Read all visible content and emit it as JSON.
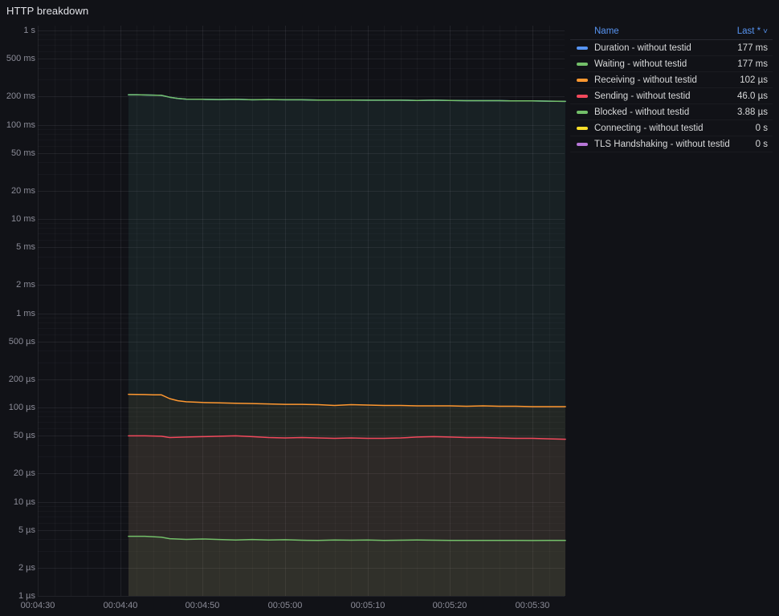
{
  "title": "HTTP breakdown",
  "legend": {
    "name_header": "Name",
    "value_header": "Last *",
    "sort_caret": "˅",
    "rows": [
      {
        "name": "Duration - without testid",
        "value": "177 ms",
        "color": "#5794F2"
      },
      {
        "name": "Waiting - without testid",
        "value": "177 ms",
        "color": "#73BF69"
      },
      {
        "name": "Receiving - without testid",
        "value": "102 µs",
        "color": "#FF9830"
      },
      {
        "name": "Sending - without testid",
        "value": "46.0 µs",
        "color": "#F2495C"
      },
      {
        "name": "Blocked - without testid",
        "value": "3.88 µs",
        "color": "#73BF69"
      },
      {
        "name": "Connecting - without testid",
        "value": "0 s",
        "color": "#FADE2A"
      },
      {
        "name": "TLS Handshaking - without testid",
        "value": "0 s",
        "color": "#B877D9"
      }
    ]
  },
  "chart_data": {
    "type": "line",
    "title": "HTTP breakdown",
    "y_axis": {
      "scale": "log10",
      "unit": "seconds",
      "range": [
        1e-06,
        1
      ],
      "ticks": [
        {
          "v": 1,
          "label": "1 s"
        },
        {
          "v": 0.5,
          "label": "500 ms"
        },
        {
          "v": 0.2,
          "label": "200 ms"
        },
        {
          "v": 0.1,
          "label": "100 ms"
        },
        {
          "v": 0.05,
          "label": "50 ms"
        },
        {
          "v": 0.02,
          "label": "20 ms"
        },
        {
          "v": 0.01,
          "label": "10 ms"
        },
        {
          "v": 0.005,
          "label": "5 ms"
        },
        {
          "v": 0.002,
          "label": "2 ms"
        },
        {
          "v": 0.001,
          "label": "1 ms"
        },
        {
          "v": 0.0005,
          "label": "500 µs"
        },
        {
          "v": 0.0002,
          "label": "200 µs"
        },
        {
          "v": 0.0001,
          "label": "100 µs"
        },
        {
          "v": 5e-05,
          "label": "50 µs"
        },
        {
          "v": 2e-05,
          "label": "20 µs"
        },
        {
          "v": 1e-05,
          "label": "10 µs"
        },
        {
          "v": 5e-06,
          "label": "5 µs"
        },
        {
          "v": 2e-06,
          "label": "2 µs"
        },
        {
          "v": 1e-06,
          "label": "1 µs"
        }
      ]
    },
    "x_axis": {
      "unit": "time",
      "range_seconds": [
        270,
        334
      ],
      "ticks": [
        {
          "t": 270,
          "label": "00:04:30"
        },
        {
          "t": 280,
          "label": "00:04:40"
        },
        {
          "t": 290,
          "label": "00:04:50"
        },
        {
          "t": 300,
          "label": "00:05:00"
        },
        {
          "t": 310,
          "label": "00:05:10"
        },
        {
          "t": 320,
          "label": "00:05:20"
        },
        {
          "t": 330,
          "label": "00:05:30"
        }
      ]
    },
    "grid": true,
    "legend_position": "top-right",
    "series": [
      {
        "name": "Duration - without testid",
        "color": "#5794F2",
        "unit_multiplier": 0.001,
        "last": "177 ms",
        "points": [
          [
            281,
            208
          ],
          [
            282,
            208
          ],
          [
            284,
            206
          ],
          [
            285,
            205
          ],
          [
            286,
            196
          ],
          [
            287,
            190
          ],
          [
            288,
            187
          ],
          [
            290,
            186
          ],
          [
            292,
            185
          ],
          [
            294,
            186
          ],
          [
            296,
            184
          ],
          [
            298,
            185
          ],
          [
            300,
            184
          ],
          [
            302,
            184
          ],
          [
            304,
            183
          ],
          [
            306,
            183
          ],
          [
            308,
            183
          ],
          [
            310,
            182
          ],
          [
            312,
            182
          ],
          [
            314,
            182
          ],
          [
            316,
            181
          ],
          [
            318,
            182
          ],
          [
            320,
            181
          ],
          [
            322,
            180
          ],
          [
            324,
            180
          ],
          [
            326,
            180
          ],
          [
            328,
            179
          ],
          [
            330,
            179
          ],
          [
            332,
            178
          ],
          [
            334,
            177
          ]
        ]
      },
      {
        "name": "Waiting - without testid",
        "color": "#73BF69",
        "unit_multiplier": 0.001,
        "last": "177 ms",
        "points": [
          [
            281,
            208
          ],
          [
            282,
            208
          ],
          [
            284,
            206
          ],
          [
            285,
            205
          ],
          [
            286,
            196
          ],
          [
            287,
            190
          ],
          [
            288,
            187
          ],
          [
            290,
            186
          ],
          [
            292,
            185
          ],
          [
            294,
            186
          ],
          [
            296,
            184
          ],
          [
            298,
            185
          ],
          [
            300,
            184
          ],
          [
            302,
            184
          ],
          [
            304,
            183
          ],
          [
            306,
            183
          ],
          [
            308,
            183
          ],
          [
            310,
            182
          ],
          [
            312,
            182
          ],
          [
            314,
            182
          ],
          [
            316,
            181
          ],
          [
            318,
            182
          ],
          [
            320,
            181
          ],
          [
            322,
            180
          ],
          [
            324,
            180
          ],
          [
            326,
            180
          ],
          [
            328,
            179
          ],
          [
            330,
            179
          ],
          [
            332,
            178
          ],
          [
            334,
            177
          ]
        ]
      },
      {
        "name": "Receiving - without testid",
        "color": "#FF9830",
        "unit_multiplier": 1e-06,
        "last": "102 µs",
        "points": [
          [
            281,
            138
          ],
          [
            283,
            137
          ],
          [
            284,
            136
          ],
          [
            285,
            136
          ],
          [
            286,
            124
          ],
          [
            287,
            118
          ],
          [
            288,
            115
          ],
          [
            290,
            113
          ],
          [
            292,
            112
          ],
          [
            294,
            111
          ],
          [
            296,
            110
          ],
          [
            298,
            109
          ],
          [
            300,
            108
          ],
          [
            302,
            108
          ],
          [
            304,
            107
          ],
          [
            306,
            105
          ],
          [
            308,
            107
          ],
          [
            310,
            106
          ],
          [
            312,
            105
          ],
          [
            314,
            105
          ],
          [
            316,
            104
          ],
          [
            318,
            104
          ],
          [
            320,
            104
          ],
          [
            322,
            103
          ],
          [
            324,
            104
          ],
          [
            326,
            103
          ],
          [
            328,
            103
          ],
          [
            330,
            102
          ],
          [
            332,
            102
          ],
          [
            334,
            102
          ]
        ]
      },
      {
        "name": "Sending - without testid",
        "color": "#F2495C",
        "unit_multiplier": 1e-06,
        "last": "46.0 µs",
        "points": [
          [
            281,
            50
          ],
          [
            283,
            50
          ],
          [
            285,
            49.5
          ],
          [
            286,
            48
          ],
          [
            288,
            48.5
          ],
          [
            290,
            49
          ],
          [
            292,
            49.5
          ],
          [
            294,
            50
          ],
          [
            296,
            49
          ],
          [
            298,
            48
          ],
          [
            300,
            47.5
          ],
          [
            302,
            48
          ],
          [
            304,
            47.5
          ],
          [
            306,
            47
          ],
          [
            308,
            47.5
          ],
          [
            310,
            47
          ],
          [
            312,
            47
          ],
          [
            314,
            47.5
          ],
          [
            316,
            48.5
          ],
          [
            318,
            49
          ],
          [
            320,
            48.5
          ],
          [
            322,
            48
          ],
          [
            324,
            48
          ],
          [
            326,
            47.5
          ],
          [
            328,
            47
          ],
          [
            330,
            47
          ],
          [
            332,
            46.5
          ],
          [
            334,
            46
          ]
        ]
      },
      {
        "name": "Blocked - without testid",
        "color": "#73BF69",
        "unit_multiplier": 1e-06,
        "last": "3.88 µs",
        "points": [
          [
            281,
            4.3
          ],
          [
            283,
            4.3
          ],
          [
            285,
            4.2
          ],
          [
            286,
            4.05
          ],
          [
            288,
            3.98
          ],
          [
            290,
            4.02
          ],
          [
            292,
            3.97
          ],
          [
            294,
            3.93
          ],
          [
            296,
            3.97
          ],
          [
            298,
            3.92
          ],
          [
            300,
            3.95
          ],
          [
            302,
            3.9
          ],
          [
            304,
            3.88
          ],
          [
            306,
            3.93
          ],
          [
            308,
            3.9
          ],
          [
            310,
            3.92
          ],
          [
            312,
            3.88
          ],
          [
            314,
            3.9
          ],
          [
            316,
            3.92
          ],
          [
            318,
            3.9
          ],
          [
            320,
            3.89
          ],
          [
            322,
            3.88
          ],
          [
            324,
            3.89
          ],
          [
            326,
            3.88
          ],
          [
            328,
            3.88
          ],
          [
            330,
            3.87
          ],
          [
            332,
            3.88
          ],
          [
            334,
            3.88
          ]
        ]
      },
      {
        "name": "Connecting - without testid",
        "color": "#FADE2A",
        "unit_multiplier": 1,
        "last": "0 s",
        "points": []
      },
      {
        "name": "TLS Handshaking - without testid",
        "color": "#B877D9",
        "unit_multiplier": 1,
        "last": "0 s",
        "points": []
      }
    ]
  },
  "colors": {
    "background": "#111217",
    "grid": "#ccccdc",
    "text_primary": "#d8d9da",
    "text_secondary": "#9a9ca3",
    "link_blue": "#5794F2"
  }
}
